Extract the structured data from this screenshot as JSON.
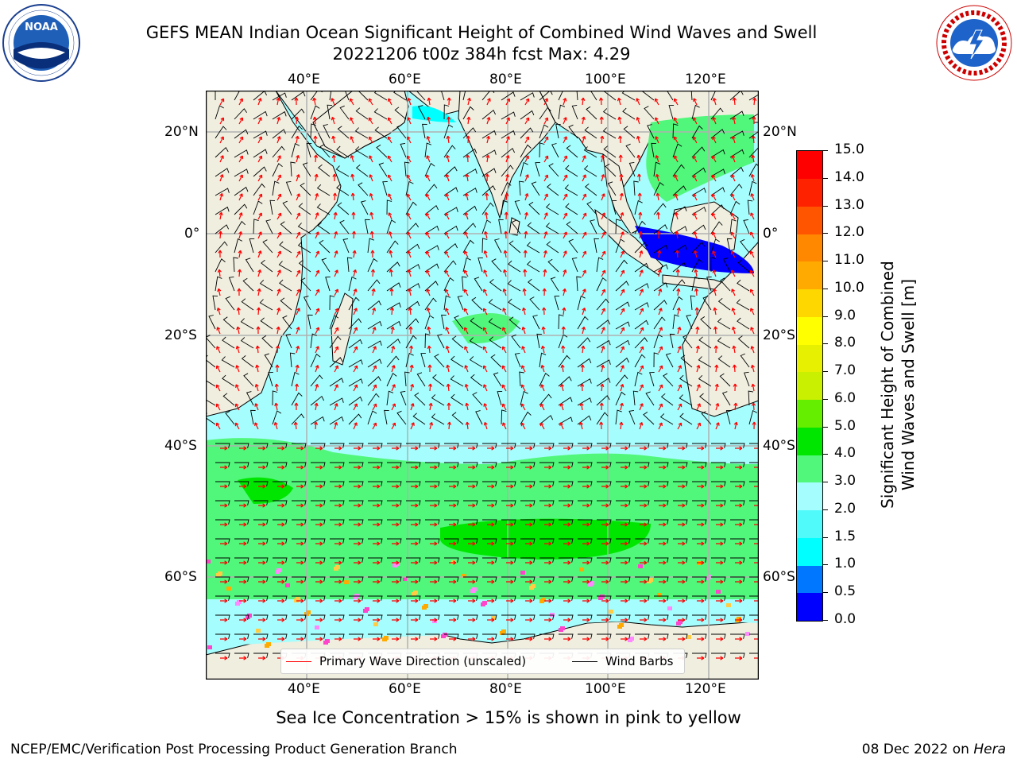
{
  "header": {
    "title_line1": "GEFS MEAN Indian Ocean Significant Height of Combined Wind Waves and Swell",
    "title_line2": "20221206 t00z 384h fcst   Max: 4.29"
  },
  "logos": {
    "left": "noaa-logo",
    "left_text": "NOAA",
    "left_ring_text": "NATIONAL OCEANIC AND ATMOSPHERIC ADMINISTRATION · U.S. DEPARTMENT OF COMMERCE",
    "right": "nws-logo",
    "right_ring_text": "NATIONAL WEATHER SERVICE"
  },
  "map": {
    "lon_ticks_top": [
      "40°E",
      "60°E",
      "80°E",
      "100°E",
      "120°E"
    ],
    "lon_ticks_bottom": [
      "40°E",
      "60°E",
      "80°E",
      "100°E",
      "120°E"
    ],
    "lat_ticks_left": [
      "20°N",
      "0°",
      "20°S",
      "40°S",
      "60°S"
    ],
    "lat_ticks_right": [
      "20°N",
      "0°",
      "20°S",
      "40°S",
      "60°S"
    ],
    "land_color": "#efeedf",
    "grid_color": "#b0b0b0"
  },
  "legend": {
    "wave_label": "Primary Wave Direction (unscaled)",
    "wave_color": "#ff0000",
    "wind_label": "Wind Barbs",
    "wind_color": "#000000"
  },
  "colorbar": {
    "label_line1": "Significant Height of Combined",
    "label_line2": "Wind Waves and Swell [m]",
    "ticks": [
      "0.0",
      "0.5",
      "1.0",
      "1.5",
      "2.0",
      "3.0",
      "4.0",
      "5.0",
      "6.0",
      "7.0",
      "8.0",
      "9.0",
      "10.0",
      "11.0",
      "12.0",
      "13.0",
      "14.0",
      "15.0"
    ],
    "colors": [
      "#0000ff",
      "#0077ff",
      "#00ffff",
      "#50fafa",
      "#a6fdfd",
      "#50f77a",
      "#00e600",
      "#66ee00",
      "#c8f000",
      "#e6f000",
      "#ffff00",
      "#ffd700",
      "#ffaa00",
      "#ff8800",
      "#ff5500",
      "#ff2200",
      "#ff0000"
    ]
  },
  "caption": "Sea Ice Concentration > 15% is shown in pink to yellow",
  "footer": {
    "left": "NCEP/EMC/Verification Post Processing Product Generation Branch",
    "right_prefix": "08 Dec 2022 on ",
    "right_host": "Hera"
  }
}
